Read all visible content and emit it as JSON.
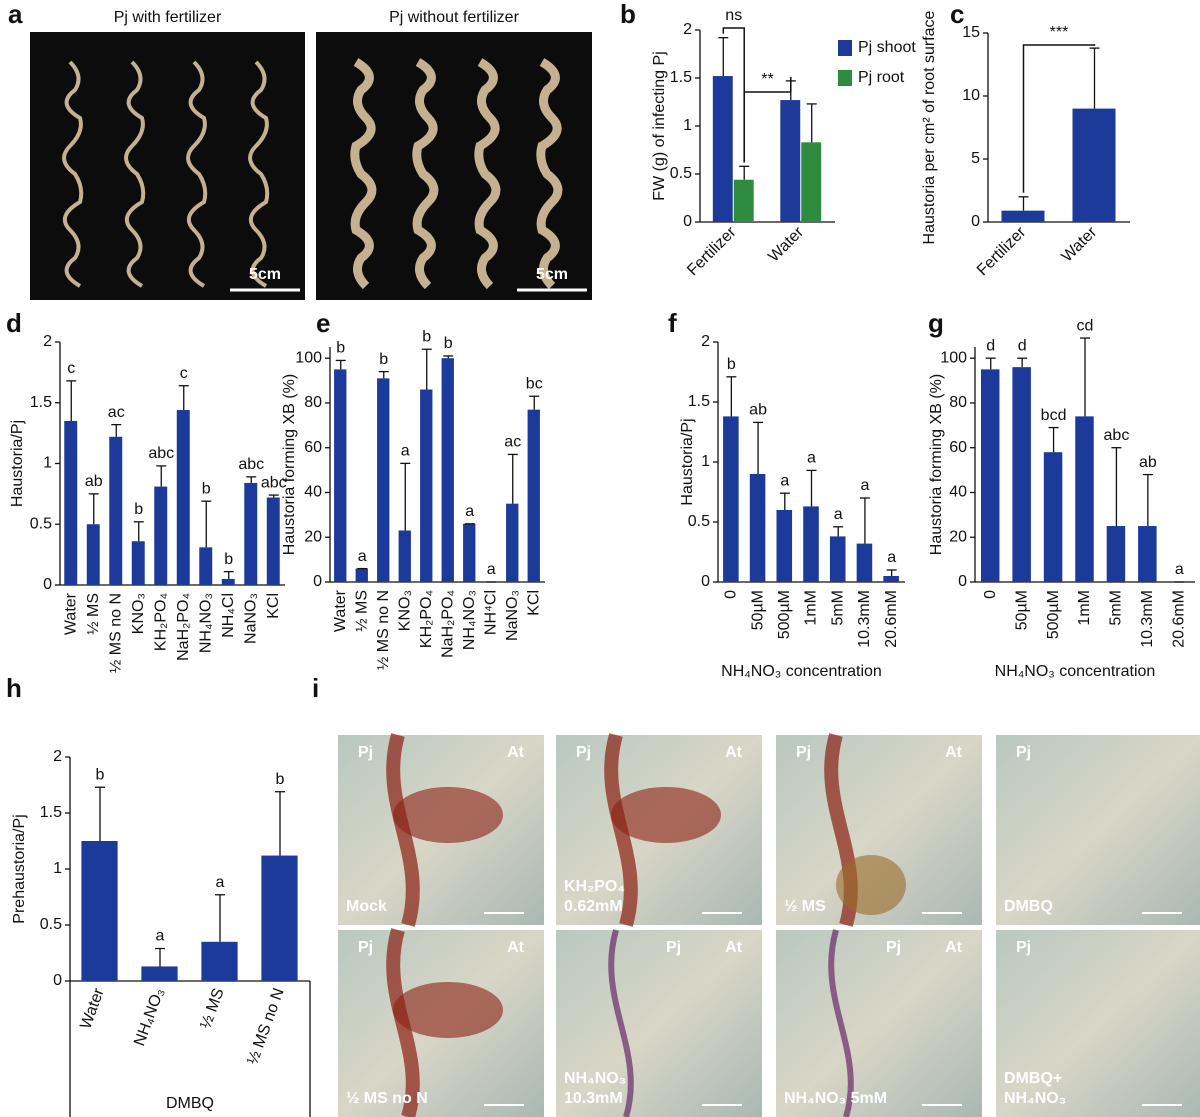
{
  "photos": {
    "a": {
      "panel": "a",
      "tiles": [
        {
          "title": "Pj with fertilizer",
          "scale": "5cm"
        },
        {
          "title": "Pj without fertilizer",
          "scale": "5cm"
        }
      ]
    },
    "i": {
      "panel": "i",
      "tiles": [
        {
          "left": "Pj",
          "right": "At",
          "caption": [
            "Mock"
          ]
        },
        {
          "left": "Pj",
          "right": "At",
          "caption": [
            "KH₂PO₄",
            "0.62mM"
          ]
        },
        {
          "left": "Pj",
          "right": "At",
          "caption": [
            "½ MS"
          ]
        },
        {
          "left": "Pj",
          "caption": [
            "DMBQ"
          ]
        },
        {
          "left": "Pj",
          "right": "At",
          "caption": [
            "½ MS no N"
          ]
        },
        {
          "left": "Pj",
          "right": "At",
          "caption": [
            "NH₄NO₃",
            "10.3mM"
          ]
        },
        {
          "left": "Pj",
          "right": "At",
          "caption": [
            "NH₄NO₃   5mM"
          ]
        },
        {
          "left": "Pj",
          "caption": [
            "DMBQ+",
            "NH₄NO₃"
          ]
        }
      ]
    }
  },
  "chart_data": [
    {
      "type": "bar",
      "panel": "b",
      "y_label": "FW (g) of infecting Pj",
      "categories": [
        "Fertilizer",
        "Water"
      ],
      "series": [
        {
          "name": "Pj shoot",
          "color": "#1b3a9a",
          "values": [
            1.52,
            1.27
          ],
          "errors": [
            0.4,
            0.2
          ]
        },
        {
          "name": "Pj root",
          "color": "#2e8b3e",
          "values": [
            0.44,
            0.83
          ],
          "errors": [
            0.14,
            0.4
          ]
        }
      ],
      "brackets": [
        "ns",
        "**"
      ],
      "ylim": [
        0,
        2
      ],
      "yticks": [
        0,
        0.5,
        1,
        1.5,
        2
      ]
    },
    {
      "type": "bar",
      "panel": "c",
      "y_label": "Haustoria per cm² of root surface",
      "categories": [
        "Fertilizer",
        "Water"
      ],
      "values": [
        0.9,
        9.0
      ],
      "errors": [
        1.1,
        4.8
      ],
      "color": "#1b3a9a",
      "brackets": [
        "***"
      ],
      "ylim": [
        0,
        15
      ],
      "yticks": [
        0,
        5,
        10,
        15
      ]
    },
    {
      "type": "bar",
      "panel": "d",
      "y_label": "Haustoria/Pj",
      "categories": [
        "Water",
        "½ MS",
        "½ MS no N",
        "KNO₃",
        "KH₂PO₄",
        "NaH₂PO₄",
        "NH₄NO₃",
        "NH₄Cl",
        "NaNO₃",
        "KCl"
      ],
      "values": [
        1.35,
        0.5,
        1.22,
        0.36,
        0.81,
        1.44,
        0.31,
        0.05,
        0.84,
        0.72
      ],
      "errors": [
        0.33,
        0.25,
        0.1,
        0.16,
        0.17,
        0.2,
        0.38,
        0.06,
        0.05,
        0.02
      ],
      "letters": [
        "c",
        "ab",
        "ac",
        "b",
        "abc",
        "c",
        "b",
        "b",
        "abc",
        "abc"
      ],
      "color": "#1b3a9a",
      "ylim": [
        0,
        2
      ],
      "yticks": [
        0,
        0.5,
        1,
        1.5,
        2
      ]
    },
    {
      "type": "bar",
      "panel": "e",
      "y_label": "Haustoria forming XB (%)",
      "categories": [
        "Water",
        "½ MS",
        "½ MS no N",
        "KNO₃",
        "KH₂PO₄",
        "NaH₂PO₄",
        "NH₄NO₃",
        "NH⁴Cl",
        "NaNO₃",
        "KCl"
      ],
      "values": [
        95,
        6,
        91,
        23,
        86,
        100,
        26,
        0,
        35,
        77
      ],
      "errors": [
        4,
        0,
        3,
        30,
        18,
        1,
        0,
        0,
        22,
        6
      ],
      "letters": [
        "b",
        "a",
        "b",
        "a",
        "b",
        "b",
        "a",
        "a",
        "ac",
        "bc"
      ],
      "color": "#1b3a9a",
      "ylim": [
        0,
        105
      ],
      "yticks": [
        0,
        20,
        40,
        60,
        80,
        100
      ]
    },
    {
      "type": "bar",
      "panel": "f",
      "y_label": "Haustoria/Pj",
      "x_label": "NH₄NO₃ concentration",
      "categories": [
        "0",
        "50µM",
        "500µM",
        "1mM",
        "5mM",
        "10.3mM",
        "20.6mM"
      ],
      "values": [
        1.38,
        0.9,
        0.6,
        0.63,
        0.38,
        0.32,
        0.05
      ],
      "errors": [
        0.33,
        0.43,
        0.14,
        0.3,
        0.08,
        0.38,
        0.05
      ],
      "letters": [
        "b",
        "ab",
        "a",
        "a",
        "a",
        "a",
        "a"
      ],
      "color": "#1b3a9a",
      "ylim": [
        0,
        2
      ],
      "yticks": [
        0,
        0.5,
        1,
        1.5,
        2
      ]
    },
    {
      "type": "bar",
      "panel": "g",
      "y_label": "Haustoria forming XB (%)",
      "x_label": "NH₄NO₃ concentration",
      "categories": [
        "0",
        "50µM",
        "500µM",
        "1mM",
        "5mM",
        "10.3mM",
        "20.6mM"
      ],
      "values": [
        95,
        96,
        58,
        74,
        25,
        25,
        0
      ],
      "errors": [
        5,
        4,
        11,
        35,
        35,
        23,
        0
      ],
      "letters": [
        "d",
        "d",
        "bcd",
        "cd",
        "abc",
        "ab",
        "a"
      ],
      "color": "#1b3a9a",
      "ylim": [
        0,
        105
      ],
      "yticks": [
        0,
        20,
        40,
        60,
        80,
        100
      ]
    },
    {
      "type": "bar",
      "panel": "h",
      "y_label": "Prehaustoria/Pj",
      "x_label": "DMBQ",
      "categories": [
        "Water",
        "NH₄NO₃",
        "½ MS",
        "½ MS no N"
      ],
      "values": [
        1.25,
        0.13,
        0.35,
        1.12
      ],
      "errors": [
        0.48,
        0.16,
        0.42,
        0.57
      ],
      "letters": [
        "b",
        "a",
        "a",
        "b"
      ],
      "color": "#1b3a9a",
      "ylim": [
        0,
        2
      ],
      "yticks": [
        0,
        0.5,
        1,
        1.5,
        2
      ]
    }
  ]
}
